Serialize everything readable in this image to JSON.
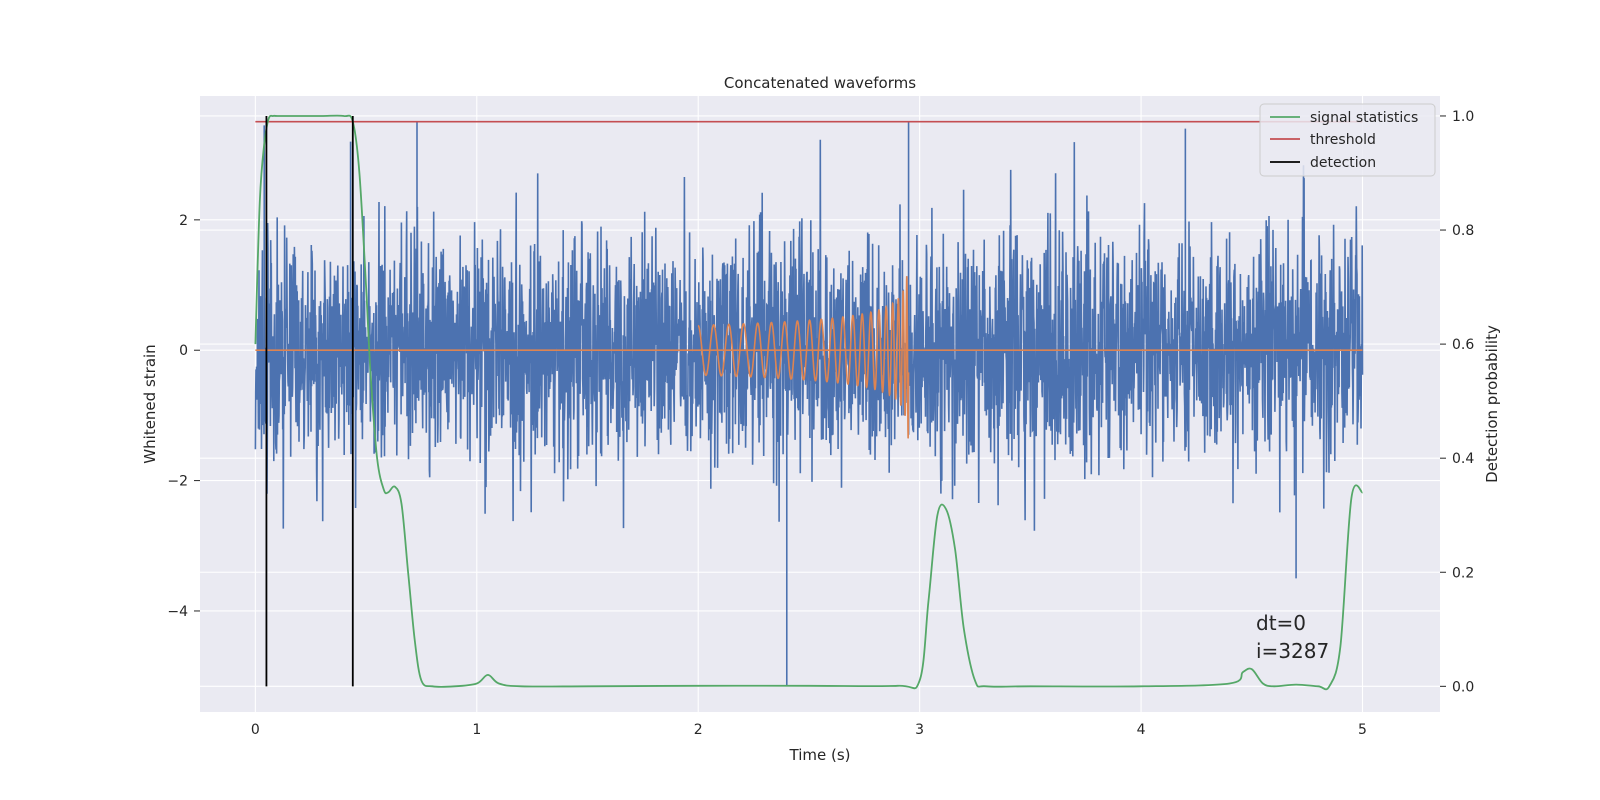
{
  "chart_data": {
    "type": "line",
    "title": "Concatenated waveforms",
    "xlabel": "Time (s)",
    "ylabel": "Whitened strain",
    "y2label": "Detection probability",
    "xlim": [
      -0.25,
      5.35
    ],
    "ylim": [
      -5.55,
      3.9
    ],
    "y2lim": [
      -0.045,
      1.035
    ],
    "xticks": [
      0,
      1,
      2,
      3,
      4,
      5
    ],
    "yticks": [
      2,
      0,
      -2,
      -4
    ],
    "ytick_labels": [
      "2",
      "0",
      "−2",
      "−4"
    ],
    "y2ticks": [
      1.0,
      0.8,
      0.6,
      0.4,
      0.2,
      0.0
    ],
    "y2tick_labels": [
      "1.0",
      "0.8",
      "0.6",
      "0.4",
      "0.2",
      "0.0"
    ],
    "grid": true,
    "legend_position": "top-right",
    "colors": {
      "strain": "#4c72b0",
      "injection": "#dd8452",
      "signal": "#55a868",
      "threshold": "#c44e52",
      "detection": "#000000",
      "background": "#eaeaf2",
      "grid": "#ffffff"
    },
    "series": [
      {
        "name": "",
        "axis": "left",
        "kind": "noise",
        "x_range": [
          0,
          5
        ],
        "envelope": [
          1.5,
          3.4
        ],
        "spike_x": [
          0.04,
          0.43,
          0.73,
          2.4,
          2.95,
          4.2,
          4.7
        ],
        "spike_y": [
          3.45,
          3.2,
          3.5,
          -5.15,
          3.5,
          3.4,
          -3.5
        ]
      },
      {
        "name": "",
        "axis": "left",
        "kind": "chirp",
        "x_range": [
          2.0,
          2.95
        ],
        "peak_amplitude": 1.5
      },
      {
        "name": "signal statistics",
        "axis": "right",
        "x": [
          0,
          0.02,
          0.04,
          0.06,
          0.08,
          0.1,
          0.2,
          0.3,
          0.4,
          0.44,
          0.47,
          0.5,
          0.52,
          0.55,
          0.58,
          0.6,
          0.63,
          0.66,
          0.69,
          0.72,
          0.75,
          0.8,
          0.9,
          1.0,
          1.05,
          1.1,
          1.2,
          1.5,
          2.0,
          2.5,
          2.9,
          3.0,
          3.04,
          3.08,
          3.12,
          3.16,
          3.2,
          3.25,
          3.3,
          3.5,
          4.0,
          4.4,
          4.46,
          4.5,
          4.55,
          4.6,
          4.7,
          4.8,
          4.85,
          4.9,
          4.95,
          5.0
        ],
        "y": [
          0.6,
          0.85,
          0.95,
          0.995,
          1.0,
          1.0,
          1.0,
          1.0,
          1.0,
          0.99,
          0.9,
          0.7,
          0.55,
          0.4,
          0.345,
          0.34,
          0.35,
          0.32,
          0.2,
          0.08,
          0.01,
          0.0,
          0.0,
          0.005,
          0.02,
          0.005,
          0.0,
          0.0,
          0.001,
          0.001,
          0.001,
          0.01,
          0.15,
          0.3,
          0.31,
          0.24,
          0.1,
          0.01,
          0.0,
          0.0,
          0.0,
          0.005,
          0.025,
          0.03,
          0.005,
          0.0,
          0.003,
          0.0,
          0.0,
          0.07,
          0.33,
          0.34
        ]
      },
      {
        "name": "threshold",
        "axis": "right",
        "x": [
          0,
          5
        ],
        "y": [
          0.99,
          0.99
        ]
      },
      {
        "name": "detection",
        "axis": "right",
        "vlines_x": [
          0.05,
          0.44
        ],
        "y_range": [
          0.0,
          1.0
        ]
      }
    ],
    "annotation": [
      "dt=0",
      "i=3287"
    ]
  }
}
